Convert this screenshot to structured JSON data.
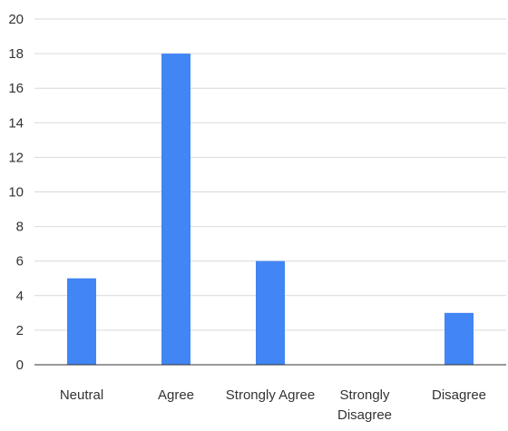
{
  "chart_data": {
    "type": "bar",
    "title": "",
    "xlabel": "",
    "ylabel": "",
    "categories": [
      "Neutral",
      "Agree",
      "Strongly Agree",
      "Strongly Disagree",
      "Disagree"
    ],
    "values": [
      5,
      18,
      6,
      0,
      3
    ],
    "ylim": [
      0,
      20
    ],
    "yticks": [
      "0",
      "2",
      "4",
      "6",
      "8",
      "10",
      "12",
      "14",
      "16",
      "18",
      "20"
    ],
    "grid": true,
    "legend": "none",
    "colors": {
      "bar": "#4285F4",
      "grid": "#d9d9d9",
      "baseline": "#333333",
      "text": "#333333"
    }
  }
}
